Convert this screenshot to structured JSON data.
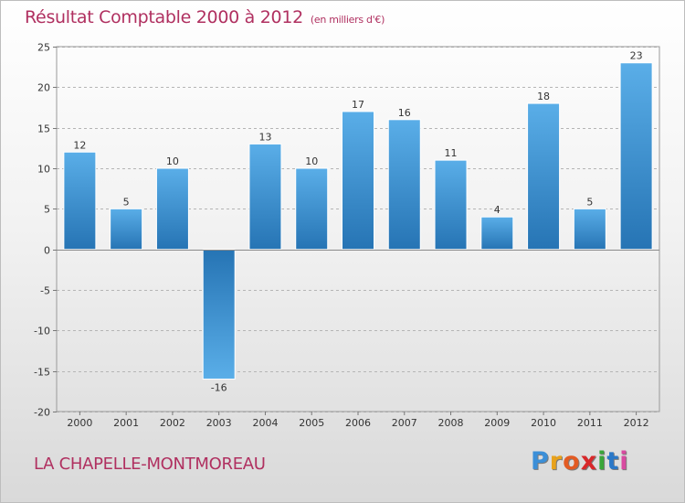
{
  "chart_data": {
    "type": "bar",
    "title": "Résultat Comptable 2000 à 2012",
    "unit_note": "(en milliers d'€)",
    "categories": [
      "2000",
      "2001",
      "2002",
      "2003",
      "2004",
      "2005",
      "2006",
      "2007",
      "2008",
      "2009",
      "2010",
      "2011",
      "2012"
    ],
    "values": [
      12,
      5,
      10,
      -16,
      13,
      10,
      17,
      16,
      11,
      4,
      18,
      5,
      23
    ],
    "value_labels": [
      "12",
      "5",
      "10",
      "-16",
      "13",
      "10",
      "17",
      "16",
      "11",
      "4",
      "18",
      "5",
      "23"
    ],
    "yticks": [
      25,
      20,
      15,
      10,
      5,
      0,
      -5,
      -10,
      -15,
      -20
    ],
    "ytick_labels": [
      "25",
      "20",
      "15",
      "10",
      "5",
      "0",
      "-5",
      "-10",
      "-15",
      "-20"
    ],
    "ylim": [
      -20,
      25
    ],
    "xlabel": "",
    "ylabel": "",
    "grid": "horizontal dashed",
    "legend": "none",
    "bar_color_light": "#5aaee8",
    "bar_color_dark": "#2674b4"
  },
  "footer": {
    "commune": "LA CHAPELLE-MONTMOREAU",
    "logo_letters": [
      "P",
      "r",
      "o",
      "x",
      "i",
      "t",
      "i"
    ],
    "logo_colors": [
      "#3b8fd8",
      "#e8a21c",
      "#e25b23",
      "#d8282a",
      "#3aa63a",
      "#2a78c8",
      "#d84aa0"
    ]
  }
}
